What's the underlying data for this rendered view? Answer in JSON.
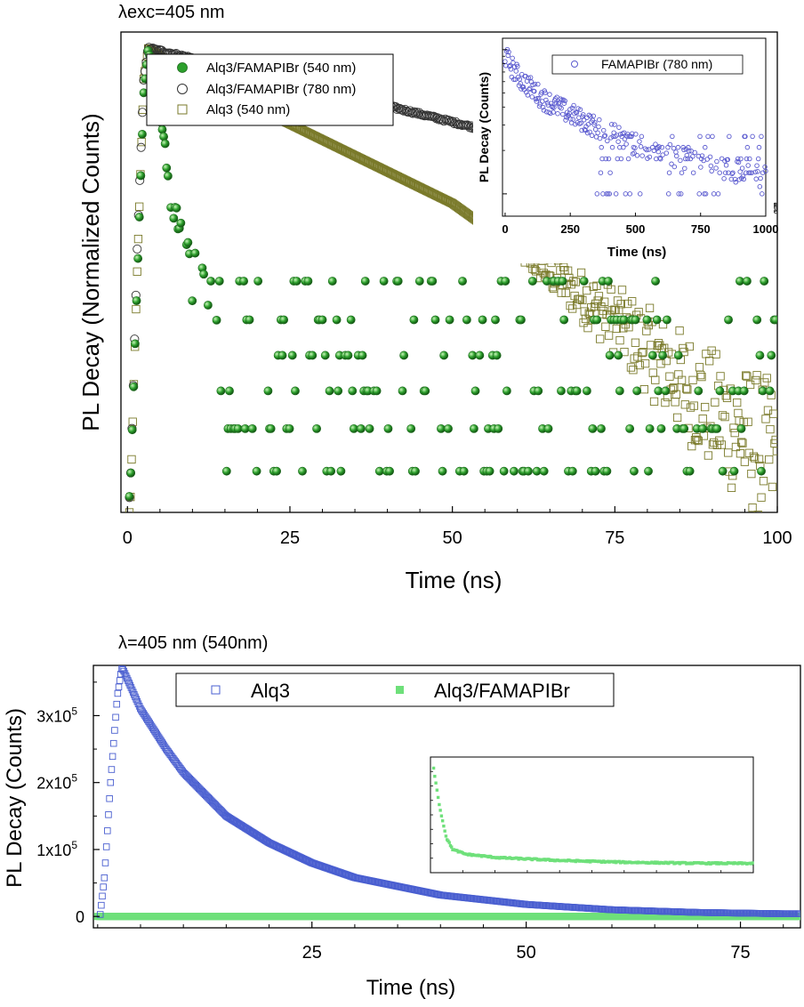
{
  "chart_data": [
    {
      "id": "top-main",
      "type": "scatter",
      "title": "λexc=405 nm",
      "xlabel": "Time (ns)",
      "ylabel": "PL Decay (Normalized Counts)",
      "xlim": [
        -1,
        100
      ],
      "xticks": [
        0,
        25,
        50,
        75,
        100
      ],
      "xtick_labels": [
        "0",
        "25",
        "50",
        "75",
        "100"
      ],
      "y_scale": "log",
      "ylim": [
        0.005,
        1.2
      ],
      "y_tick_labels_shown": false,
      "legend_position": "top-left",
      "series": [
        {
          "name": "Alq3/FAMAPIBr (540 nm)",
          "marker": "filled-sphere",
          "color": "#2ca02c",
          "description_points": [
            [
              0.4,
              0.006
            ],
            [
              1.5,
              0.07
            ],
            [
              2.5,
              0.6
            ],
            [
              3.2,
              1.0
            ],
            [
              5,
              0.45
            ],
            [
              8,
              0.15
            ],
            [
              12,
              0.08
            ],
            [
              20,
              0.05
            ],
            [
              40,
              0.04
            ],
            [
              70,
              0.03
            ],
            [
              100,
              0.02
            ]
          ],
          "noise_floor_levels": [
            0.008,
            0.013,
            0.02,
            0.03,
            0.045,
            0.07
          ]
        },
        {
          "name": "Alq3/FAMAPIBr (780 nm)",
          "marker": "open-circle",
          "color": "#333333",
          "description_points": [
            [
              0.4,
              0.006
            ],
            [
              1.5,
              0.1
            ],
            [
              2.5,
              0.7
            ],
            [
              3.2,
              1.0
            ],
            [
              10,
              0.89
            ],
            [
              25,
              0.68
            ],
            [
              50,
              0.43
            ],
            [
              75,
              0.27
            ],
            [
              100,
              0.16
            ]
          ]
        },
        {
          "name": "Alq3 (540 nm)",
          "marker": "open-square",
          "color": "#7a7a2a",
          "description_points": [
            [
              0.4,
              0.005
            ],
            [
              1.5,
              0.08
            ],
            [
              2.5,
              0.7
            ],
            [
              3.2,
              1.0
            ],
            [
              10,
              0.71
            ],
            [
              25,
              0.42
            ],
            [
              50,
              0.17
            ],
            [
              75,
              0.045
            ],
            [
              90,
              0.016
            ],
            [
              100,
              0.009
            ]
          ]
        }
      ]
    },
    {
      "id": "top-inset",
      "type": "scatter",
      "title": "",
      "xlabel": "Time (ns)",
      "ylabel": "PL Decay (Counts)",
      "xlim": [
        -10,
        1000
      ],
      "xticks": [
        0,
        250,
        500,
        750,
        1000
      ],
      "xtick_labels": [
        "0",
        "250",
        "500",
        "750",
        "1000"
      ],
      "y_scale": "log",
      "ylim": [
        0.7,
        12
      ],
      "legend_position": "top-right",
      "series": [
        {
          "name": "FAMAPIBr (780 nm)",
          "marker": "open-circle",
          "color": "#5a5acf",
          "description_points": [
            [
              0,
              9
            ],
            [
              50,
              6.5
            ],
            [
              150,
              4.5
            ],
            [
              300,
              3.2
            ],
            [
              500,
              2.2
            ],
            [
              750,
              1.6
            ],
            [
              1000,
              1.3
            ]
          ],
          "noise_floor_levels": [
            1,
            1.4,
            1.75,
            2.1,
            2.5
          ]
        }
      ]
    },
    {
      "id": "bottom-main",
      "type": "scatter",
      "title": "λ=405 nm (540nm)",
      "xlabel": "Time (ns)",
      "ylabel": "PL Decay (Counts)",
      "xlim": [
        -0.5,
        82
      ],
      "xticks": [
        25,
        50,
        75
      ],
      "xtick_labels": [
        "25",
        "50",
        "75"
      ],
      "ylim": [
        -17000,
        375000
      ],
      "yticks": [
        0,
        100000,
        200000,
        300000
      ],
      "ytick_labels": [
        {
          "base": "0",
          "exp": ""
        },
        {
          "base": "1x10",
          "exp": "5"
        },
        {
          "base": "2x10",
          "exp": "5"
        },
        {
          "base": "3x10",
          "exp": "5"
        }
      ],
      "legend_position": "top",
      "series": [
        {
          "name": "Alq3",
          "marker": "open-square",
          "color": "#4a5fd0",
          "description_points": [
            [
              0.3,
              3000
            ],
            [
              0.8,
              60000
            ],
            [
              1.5,
              200000
            ],
            [
              2.3,
              330000
            ],
            [
              2.8,
              370000
            ],
            [
              3,
              368000
            ],
            [
              5,
              310000
            ],
            [
              8,
              250000
            ],
            [
              10,
              215000
            ],
            [
              15,
              150000
            ],
            [
              20,
              110000
            ],
            [
              25,
              80000
            ],
            [
              30,
              58000
            ],
            [
              40,
              32000
            ],
            [
              50,
              18000
            ],
            [
              60,
              10000
            ],
            [
              70,
              6000
            ],
            [
              80,
              4000
            ]
          ]
        },
        {
          "name": "Alq3/FAMAPIBr",
          "marker": "filled-square",
          "color": "#6ee07a",
          "description_points": [
            [
              0,
              0
            ],
            [
              82,
              0
            ]
          ]
        }
      ]
    },
    {
      "id": "bottom-inset",
      "type": "scatter",
      "title": "",
      "xlabel": "",
      "ylabel": "",
      "xlim": [
        -1,
        100
      ],
      "ylim": [
        0,
        1
      ],
      "tick_labels_shown": false,
      "series": [
        {
          "name": "",
          "marker": "filled-square",
          "color": "#6ee07a",
          "description_points": [
            [
              0,
              0.9
            ],
            [
              2,
              0.55
            ],
            [
              4,
              0.3
            ],
            [
              6,
              0.2
            ],
            [
              10,
              0.16
            ],
            [
              20,
              0.13
            ],
            [
              40,
              0.105
            ],
            [
              60,
              0.09
            ],
            [
              80,
              0.082
            ],
            [
              100,
              0.08
            ]
          ]
        }
      ]
    }
  ]
}
